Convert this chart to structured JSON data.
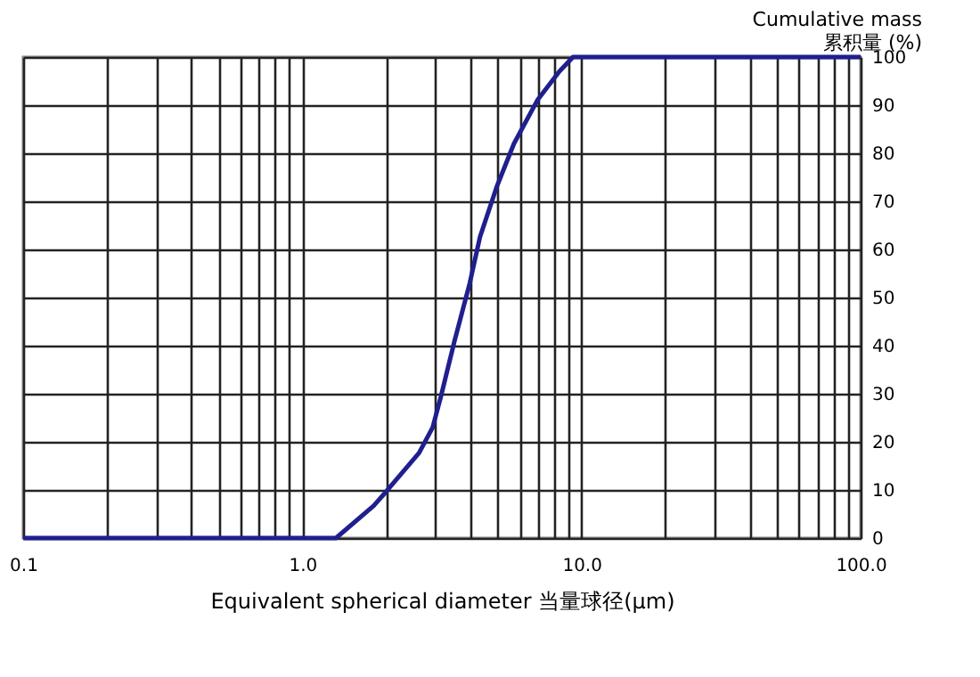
{
  "chart_data": {
    "type": "line",
    "xlabel": "Equivalent spherical diameter 当量球径(μm)",
    "ylabel": "Cumulative mass\n累积量 (%)",
    "x": [
      0.1,
      1.0,
      1.32,
      1.8,
      1.98,
      2.62,
      2.93,
      3.14,
      3.51,
      3.98,
      4.33,
      4.97,
      5.73,
      6.95,
      8.33,
      9.33,
      100
    ],
    "series": [
      {
        "color": "#1f1f8f",
        "values": [
          0,
          0,
          0,
          6.7,
          9.4,
          17.7,
          23,
          29.5,
          41,
          53,
          62.6,
          73,
          82,
          91,
          97,
          100,
          100
        ]
      }
    ],
    "log": "x",
    "xlim": [
      0.1,
      100
    ],
    "xticks": [
      {
        "value": 0.1,
        "label": "0.1"
      },
      {
        "value": 0.2,
        "label": null
      },
      {
        "value": 0.3,
        "label": null
      },
      {
        "value": 0.4,
        "label": null
      },
      {
        "value": 0.5,
        "label": null
      },
      {
        "value": 0.6,
        "label": null
      },
      {
        "value": 0.7,
        "label": null
      },
      {
        "value": 0.8,
        "label": null
      },
      {
        "value": 0.9,
        "label": null
      },
      {
        "value": 1,
        "label": "1.0"
      },
      {
        "value": 2,
        "label": null
      },
      {
        "value": 3,
        "label": null
      },
      {
        "value": 4,
        "label": null
      },
      {
        "value": 5,
        "label": null
      },
      {
        "value": 6,
        "label": null
      },
      {
        "value": 7,
        "label": null
      },
      {
        "value": 8,
        "label": null
      },
      {
        "value": 9,
        "label": null
      },
      {
        "value": 10,
        "label": "10.0"
      },
      {
        "value": 20,
        "label": null
      },
      {
        "value": 30,
        "label": null
      },
      {
        "value": 40,
        "label": null
      },
      {
        "value": 50,
        "label": null
      },
      {
        "value": 60,
        "label": null
      },
      {
        "value": 70,
        "label": null
      },
      {
        "value": 80,
        "label": null
      },
      {
        "value": 90,
        "label": null
      },
      {
        "value": 100,
        "label": "100.0"
      }
    ],
    "ylim": [
      0,
      100
    ],
    "yticks": [
      0,
      10,
      20,
      30,
      40,
      50,
      60,
      70,
      80,
      90,
      100
    ],
    "grid": true,
    "marker": "none",
    "line_style": "solid"
  }
}
